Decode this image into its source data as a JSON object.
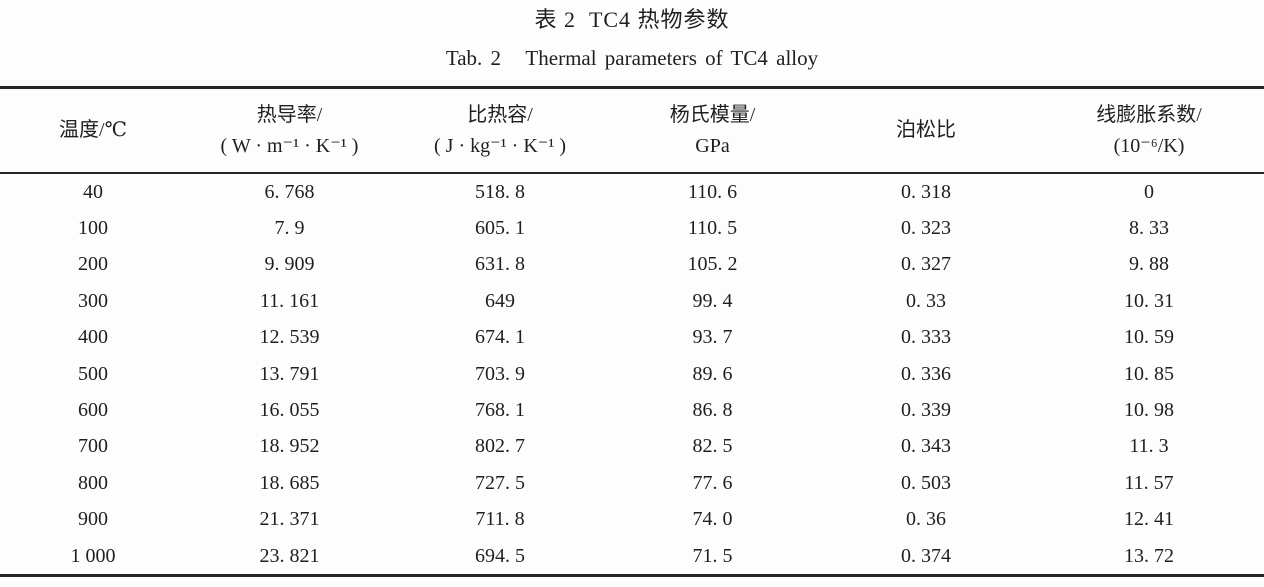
{
  "titles": {
    "zh": "表 2  TC4 热物参数",
    "en": "Tab. 2   Thermal parameters of TC4 alloy"
  },
  "table": {
    "columns": [
      {
        "line1": "温度/℃",
        "line2": ""
      },
      {
        "line1": "热导率/",
        "line2": "( W · m⁻¹ · K⁻¹ )"
      },
      {
        "line1": "比热容/",
        "line2": "( J · kg⁻¹ · K⁻¹ )"
      },
      {
        "line1": "杨氏模量/",
        "line2": "GPa"
      },
      {
        "line1": "泊松比",
        "line2": ""
      },
      {
        "line1": "线膨胀系数/",
        "line2": "(10⁻⁶/K)"
      }
    ],
    "rows": [
      [
        "40",
        "6. 768",
        "518. 8",
        "110. 6",
        "0. 318",
        "0"
      ],
      [
        "100",
        "7. 9",
        "605. 1",
        "110. 5",
        "0. 323",
        "8. 33"
      ],
      [
        "200",
        "9. 909",
        "631. 8",
        "105. 2",
        "0. 327",
        "9. 88"
      ],
      [
        "300",
        "11. 161",
        "649",
        "99. 4",
        "0. 33",
        "10. 31"
      ],
      [
        "400",
        "12. 539",
        "674. 1",
        "93. 7",
        "0. 333",
        "10. 59"
      ],
      [
        "500",
        "13. 791",
        "703. 9",
        "89. 6",
        "0. 336",
        "10. 85"
      ],
      [
        "600",
        "16. 055",
        "768. 1",
        "86. 8",
        "0. 339",
        "10. 98"
      ],
      [
        "700",
        "18. 952",
        "802. 7",
        "82. 5",
        "0. 343",
        "11. 3"
      ],
      [
        "800",
        "18. 685",
        "727. 5",
        "77. 6",
        "0. 503",
        "11. 57"
      ],
      [
        "900",
        "21. 371",
        "711. 8",
        "74. 0",
        "0. 36",
        "12. 41"
      ],
      [
        "1 000",
        "23. 821",
        "694. 5",
        "71. 5",
        "0. 374",
        "13. 72"
      ]
    ]
  }
}
